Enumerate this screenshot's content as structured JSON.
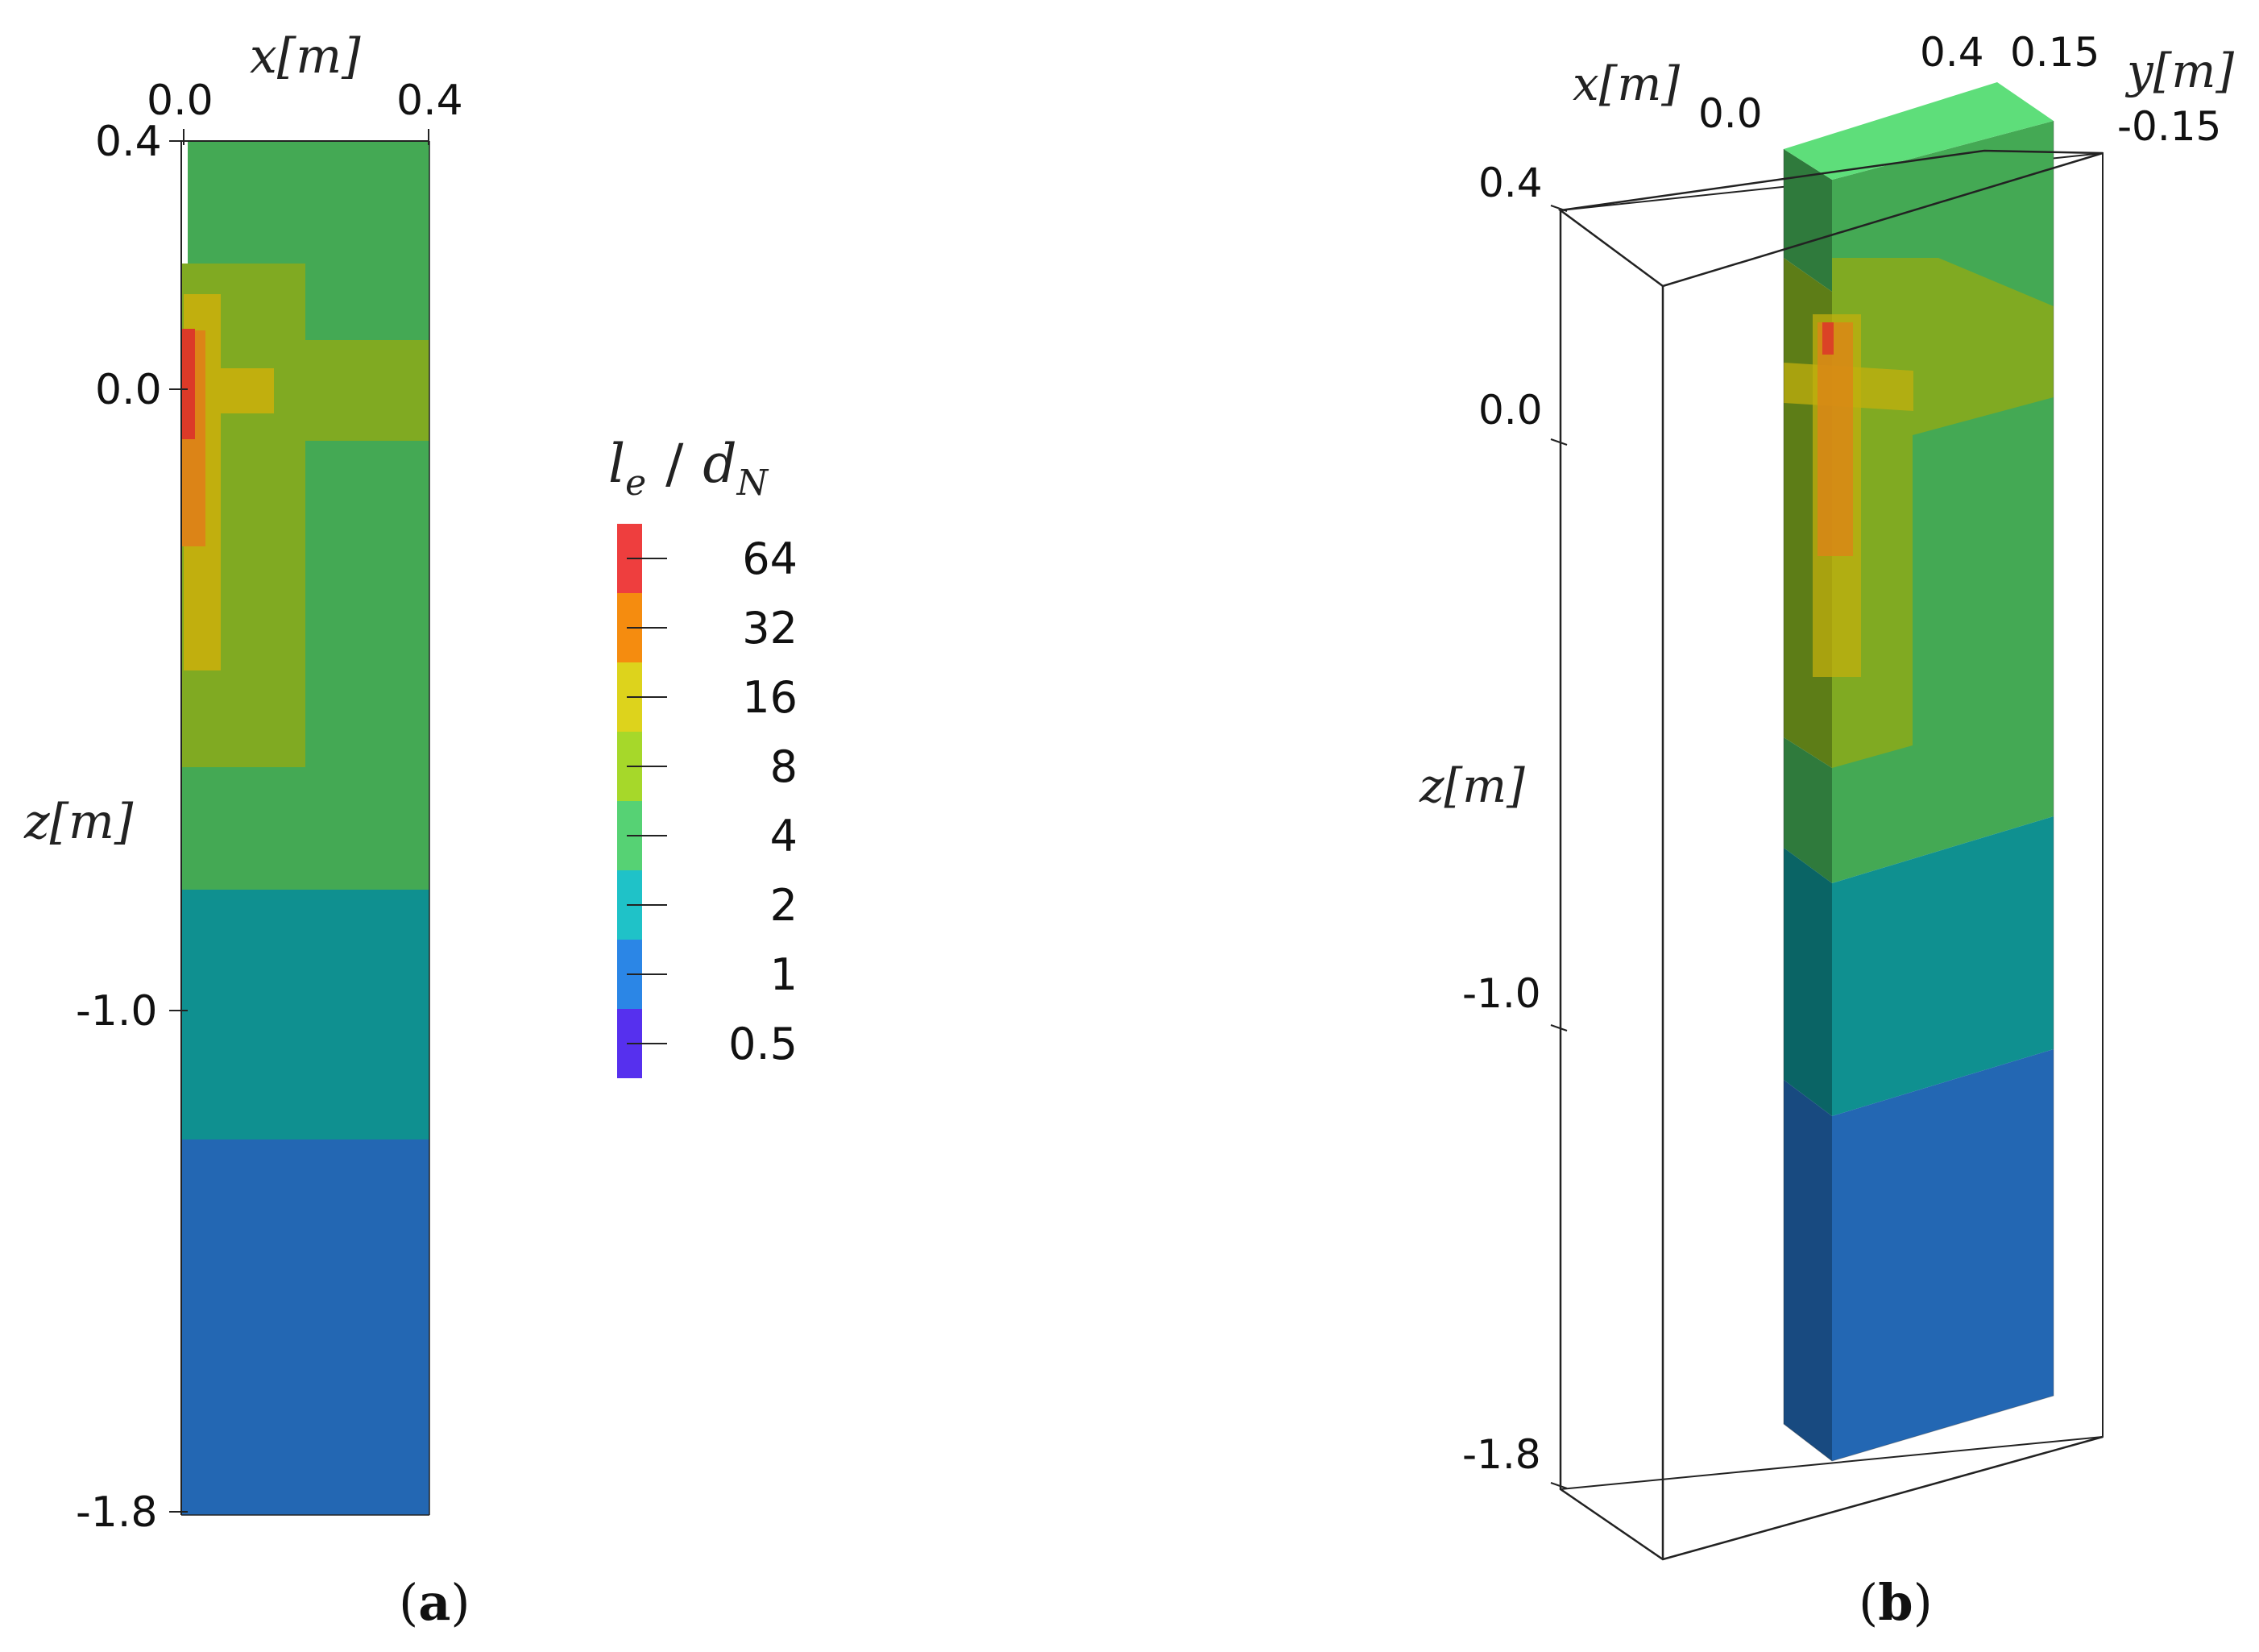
{
  "colors": {
    "c64": "#ee3e3e",
    "c32": "#f58c0f",
    "c16": "#ddd31c",
    "c8": "#a6d82a",
    "c4": "#56d274",
    "c2": "#1fc2c8",
    "c1": "#2b86e6",
    "c05": "#5630ee",
    "field4": "#44a954",
    "field8": "#80aa22",
    "field16": "#c1af0e",
    "field32": "#dc8417",
    "field64": "#dc3a28",
    "field2": "#0f9090",
    "field1": "#2367b3",
    "top": "#5ede7a"
  },
  "panel_a": {
    "x_axis_label": "x[m]",
    "z_axis_label": "z[m]",
    "x_ticks": [
      "0.0",
      "0.4"
    ],
    "z_ticks": [
      "0.4",
      "0.0",
      "-1.0",
      "-1.8"
    ],
    "caption_open": "(",
    "caption_letter": "a",
    "caption_close": ")"
  },
  "colorbar": {
    "title_l": "l",
    "title_e": "e",
    "title_sep": "/",
    "title_d": "d",
    "title_N": "N",
    "entries": [
      {
        "label": "64",
        "color_key": "c64"
      },
      {
        "label": "32",
        "color_key": "c32"
      },
      {
        "label": "16",
        "color_key": "c16"
      },
      {
        "label": "8",
        "color_key": "c8"
      },
      {
        "label": "4",
        "color_key": "c4"
      },
      {
        "label": "2",
        "color_key": "c2"
      },
      {
        "label": "1",
        "color_key": "c1"
      },
      {
        "label": "0.5",
        "color_key": "c05"
      }
    ]
  },
  "panel_b": {
    "x_axis_label": "x[m]",
    "y_axis_label": "y[m]",
    "z_axis_label": "z[m]",
    "x_tick_0": "0.0",
    "x_tick_04": "0.4",
    "y_tick_015": "0.15",
    "y_tick_m015": "-0.15",
    "z_ticks": [
      "0.4",
      "0.0",
      "-1.0",
      "-1.8"
    ],
    "caption_open": "(",
    "caption_letter": "b",
    "caption_close": ")"
  }
}
